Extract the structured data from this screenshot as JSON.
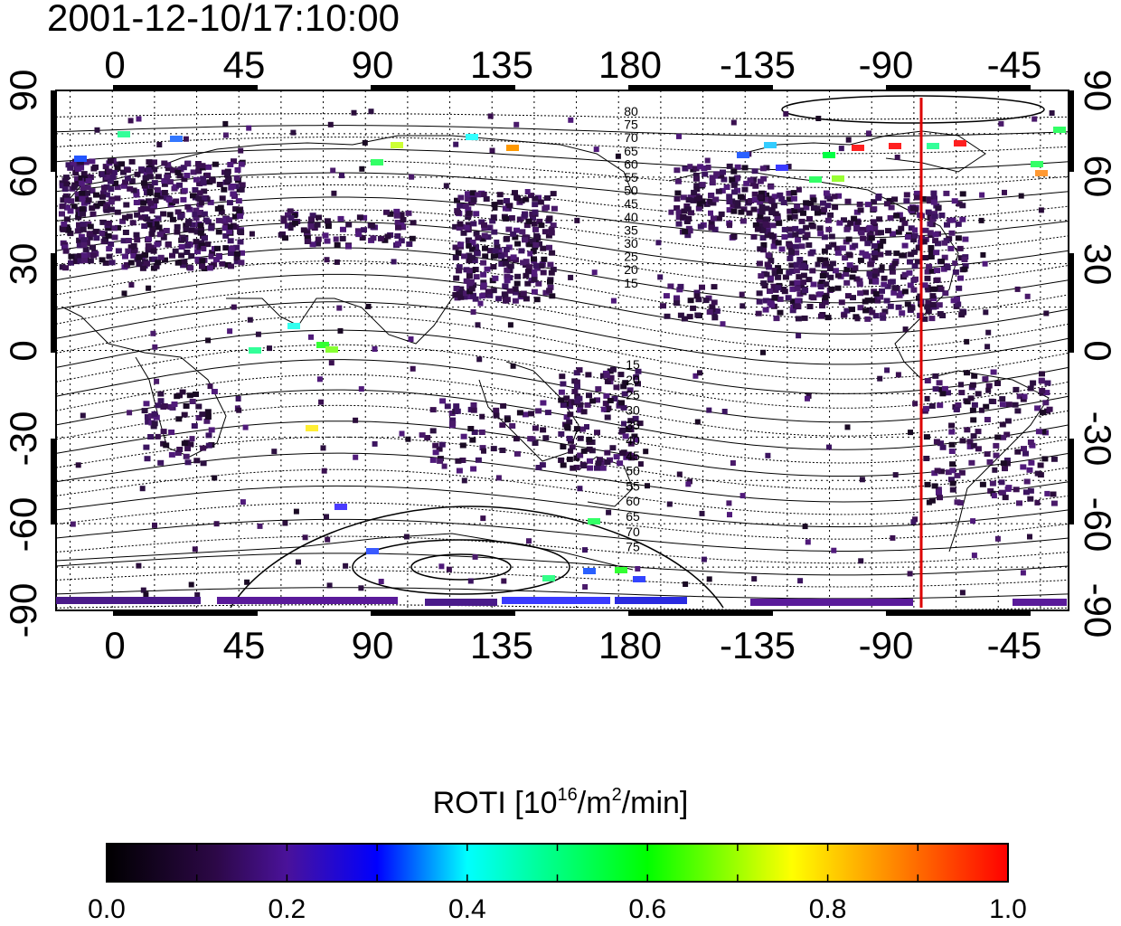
{
  "title": "2001-12-10/17:10:00",
  "map": {
    "x_ticks": [
      "0",
      "45",
      "90",
      "135",
      "180",
      "-135",
      "-90",
      "-45"
    ],
    "y_ticks": [
      "90",
      "60",
      "30",
      "0",
      "-30",
      "-60",
      "-90"
    ],
    "contour_labels_north": [
      "80",
      "75",
      "70",
      "65",
      "60",
      "55",
      "50",
      "45",
      "40",
      "35",
      "30",
      "25",
      "20",
      "15"
    ],
    "contour_labels_south": [
      "15",
      "20",
      "25",
      "30",
      "35",
      "40",
      "45",
      "50",
      "55",
      "60",
      "65",
      "70",
      "75"
    ],
    "meridian_line_color": "#dd0000",
    "meridian_line_lon": -74
  },
  "colorbar": {
    "title_prefix": "ROTI  [10",
    "title_sup1": "16",
    "title_mid": "/m",
    "title_sup2": "2",
    "title_suffix": "/min]",
    "tick_labels": [
      "0.0",
      "0.2",
      "0.4",
      "0.6",
      "0.8",
      "1.0"
    ],
    "range": [
      0.0,
      1.0
    ],
    "colors": [
      "#000000",
      "#3a0a5e",
      "#4a18a0",
      "#0000ff",
      "#00ffff",
      "#00ff00",
      "#ffff00",
      "#ff8000",
      "#ff0000"
    ]
  }
}
